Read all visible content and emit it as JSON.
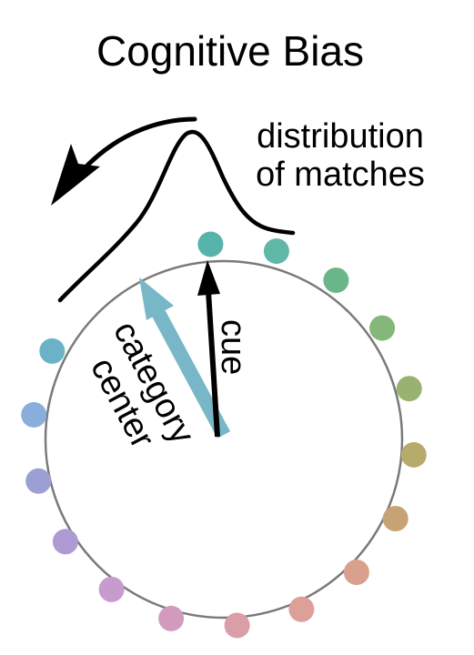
{
  "title": "Cognitive Bias",
  "annotation": {
    "line1": "distribution",
    "line2": "of matches"
  },
  "arrows": {
    "cue_label": "cue",
    "category_label_line1": "category",
    "category_label_line2": "center",
    "cue_color": "#000000",
    "category_color": "#78b7c8"
  },
  "wheel": {
    "outline_color": "#7a7a7a",
    "dot_colors": [
      "#56b4ab",
      "#60b7a6",
      "#6ab68b",
      "#84b77a",
      "#98b36f",
      "#b6ab6b",
      "#c6a275",
      "#d8a08d",
      "#dca099",
      "#d99ea8",
      "#d29bbd",
      "#c89bce",
      "#ad9ad3",
      "#9b9fd4",
      "#8aaedc",
      "#6cb2c6"
    ]
  }
}
